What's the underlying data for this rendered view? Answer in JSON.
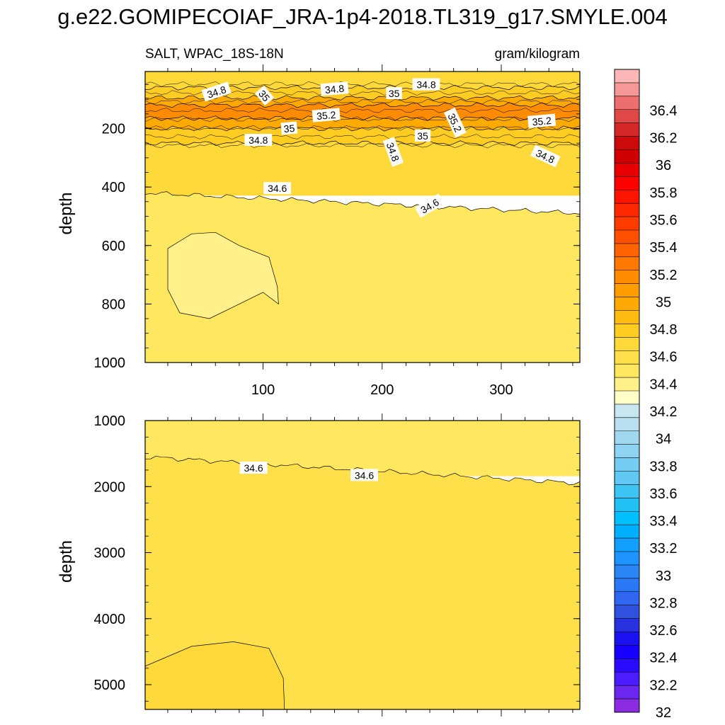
{
  "title": "g.e22.GOMIPECOIAF_JRA-1p4-2018.TL319_g17.SMYLE.004",
  "colors": {
    "levels": [
      {
        "v": 32,
        "c": "#8b2be2"
      },
      {
        "v": 32.1,
        "c": "#6b26f0"
      },
      {
        "v": 32.2,
        "c": "#4b1cff"
      },
      {
        "v": 32.3,
        "c": "#2b0bff"
      },
      {
        "v": 32.4,
        "c": "#1800ff"
      },
      {
        "v": 32.5,
        "c": "#1a10f0"
      },
      {
        "v": 32.6,
        "c": "#2830e0"
      },
      {
        "v": 32.7,
        "c": "#3050e0"
      },
      {
        "v": 32.8,
        "c": "#3066f0"
      },
      {
        "v": 32.9,
        "c": "#2a78f5"
      },
      {
        "v": 33,
        "c": "#2a86f5"
      },
      {
        "v": 33.1,
        "c": "#1d94ff"
      },
      {
        "v": 33.2,
        "c": "#12a0ff"
      },
      {
        "v": 33.3,
        "c": "#00b0ff"
      },
      {
        "v": 33.4,
        "c": "#00c0ff"
      },
      {
        "v": 33.5,
        "c": "#20c0f5"
      },
      {
        "v": 33.6,
        "c": "#3dc6f5"
      },
      {
        "v": 33.7,
        "c": "#60c8f2"
      },
      {
        "v": 33.8,
        "c": "#74cdf3"
      },
      {
        "v": 33.9,
        "c": "#8ed4f2"
      },
      {
        "v": 34,
        "c": "#a0d8f0"
      },
      {
        "v": 34.1,
        "c": "#b8e0f0"
      },
      {
        "v": 34.2,
        "c": "#c8e6f0"
      },
      {
        "v": 34.3,
        "c": "#ffffc8"
      },
      {
        "v": 34.4,
        "c": "#fff08a"
      },
      {
        "v": 34.5,
        "c": "#ffe85f"
      },
      {
        "v": 34.6,
        "c": "#ffe04a"
      },
      {
        "v": 34.7,
        "c": "#ffd83a"
      },
      {
        "v": 34.8,
        "c": "#ffcc22"
      },
      {
        "v": 34.9,
        "c": "#ffbc10"
      },
      {
        "v": 35,
        "c": "#ffaa00"
      },
      {
        "v": 35.1,
        "c": "#ff9c00"
      },
      {
        "v": 35.2,
        "c": "#ff8c00"
      },
      {
        "v": 35.3,
        "c": "#ff7800"
      },
      {
        "v": 35.4,
        "c": "#ff6400"
      },
      {
        "v": 35.5,
        "c": "#ff5000"
      },
      {
        "v": 35.6,
        "c": "#ff3c00"
      },
      {
        "v": 35.7,
        "c": "#ff2800"
      },
      {
        "v": 35.8,
        "c": "#ff1400"
      },
      {
        "v": 35.9,
        "c": "#ff0000"
      },
      {
        "v": 36,
        "c": "#e80000"
      },
      {
        "v": 36.1,
        "c": "#d00000"
      },
      {
        "v": 36.2,
        "c": "#cc0a0a"
      },
      {
        "v": 36.3,
        "c": "#d42828"
      },
      {
        "v": 36.4,
        "c": "#e04848"
      },
      {
        "v": 36.5,
        "c": "#ec6e6e"
      },
      {
        "v": 36.6,
        "c": "#f69898"
      },
      {
        "v": 36.7,
        "c": "#fcb6b6"
      }
    ],
    "line": "#000000"
  },
  "chart_data": {
    "type": "heatmap",
    "variable": "SALT, WPAC_18S-18N",
    "units": "gram/kilogram",
    "colorbar": {
      "range": [
        32,
        36.7
      ],
      "tick_labels": [
        "32",
        "32.2",
        "32.4",
        "32.6",
        "32.8",
        "33",
        "33.2",
        "33.4",
        "33.6",
        "33.8",
        "34",
        "34.2",
        "34.4",
        "34.6",
        "34.8",
        "35",
        "35.2",
        "35.4",
        "35.6",
        "35.8",
        "36",
        "36.2",
        "36.4"
      ]
    },
    "panels": [
      {
        "name": "upper",
        "ylabel": "depth",
        "xlim": [
          1,
          366
        ],
        "ylim": [
          1000,
          5
        ],
        "x_ticks": [
          100,
          200,
          300
        ],
        "y_ticks": [
          200,
          400,
          600,
          800,
          1000
        ],
        "bands": [
          {
            "from_depth": 5,
            "to_depth": 60,
            "value": 34.7
          },
          {
            "from_depth": 60,
            "to_depth": 95,
            "value": 34.8
          },
          {
            "from_depth": 95,
            "to_depth": 120,
            "value": 35.0
          },
          {
            "from_depth": 120,
            "to_depth": 165,
            "value": 35.2
          },
          {
            "from_depth": 165,
            "to_depth": 200,
            "value": 35.0
          },
          {
            "from_depth": 200,
            "to_depth": 250,
            "value": 34.8
          },
          {
            "from_depth": 250,
            "to_depth": 420,
            "value": 34.7
          },
          {
            "from_depth": 420,
            "to_depth": 1000,
            "value": 34.5
          }
        ],
        "contour_labels": [
          {
            "text": "34.8",
            "x": 61,
            "depth": 75,
            "angle": -18
          },
          {
            "text": "35",
            "x": 101,
            "depth": 88,
            "angle": 50
          },
          {
            "text": "34.8",
            "x": 160,
            "depth": 65,
            "angle": -5
          },
          {
            "text": "35",
            "x": 210,
            "depth": 80,
            "angle": 0
          },
          {
            "text": "34.8",
            "x": 237,
            "depth": 50,
            "angle": 0
          },
          {
            "text": "35.2",
            "x": 153,
            "depth": 155,
            "angle": -5
          },
          {
            "text": "35",
            "x": 122,
            "depth": 200,
            "angle": -5
          },
          {
            "text": "34.8",
            "x": 96,
            "depth": 240,
            "angle": 0
          },
          {
            "text": "35",
            "x": 234,
            "depth": 225,
            "angle": 0
          },
          {
            "text": "35.2",
            "x": 261,
            "depth": 180,
            "angle": 65
          },
          {
            "text": "35.2",
            "x": 334,
            "depth": 175,
            "angle": -5
          },
          {
            "text": "34.8",
            "x": 209,
            "depth": 280,
            "angle": 70
          },
          {
            "text": "34.8",
            "x": 337,
            "depth": 295,
            "angle": 25
          },
          {
            "text": "34.6",
            "x": 112,
            "depth": 405,
            "angle": 0
          },
          {
            "text": "34.6",
            "x": 240,
            "depth": 465,
            "angle": -30
          }
        ]
      },
      {
        "name": "lower",
        "ylabel": "depth",
        "xlim": [
          1,
          366
        ],
        "ylim": [
          5375,
          1000
        ],
        "x_ticks": [
          100,
          200,
          300
        ],
        "y_ticks": [
          1000,
          2000,
          3000,
          4000,
          5000
        ],
        "bands": [
          {
            "from_depth": 1000,
            "to_depth": 1800,
            "value": 34.5
          },
          {
            "from_depth": 1800,
            "to_depth": 5375,
            "value": 34.6
          }
        ],
        "contour_labels": [
          {
            "text": "34.6",
            "x": 92,
            "depth": 1720,
            "angle": 0
          },
          {
            "text": "34.6",
            "x": 185,
            "depth": 1830,
            "angle": 0
          }
        ]
      }
    ]
  }
}
